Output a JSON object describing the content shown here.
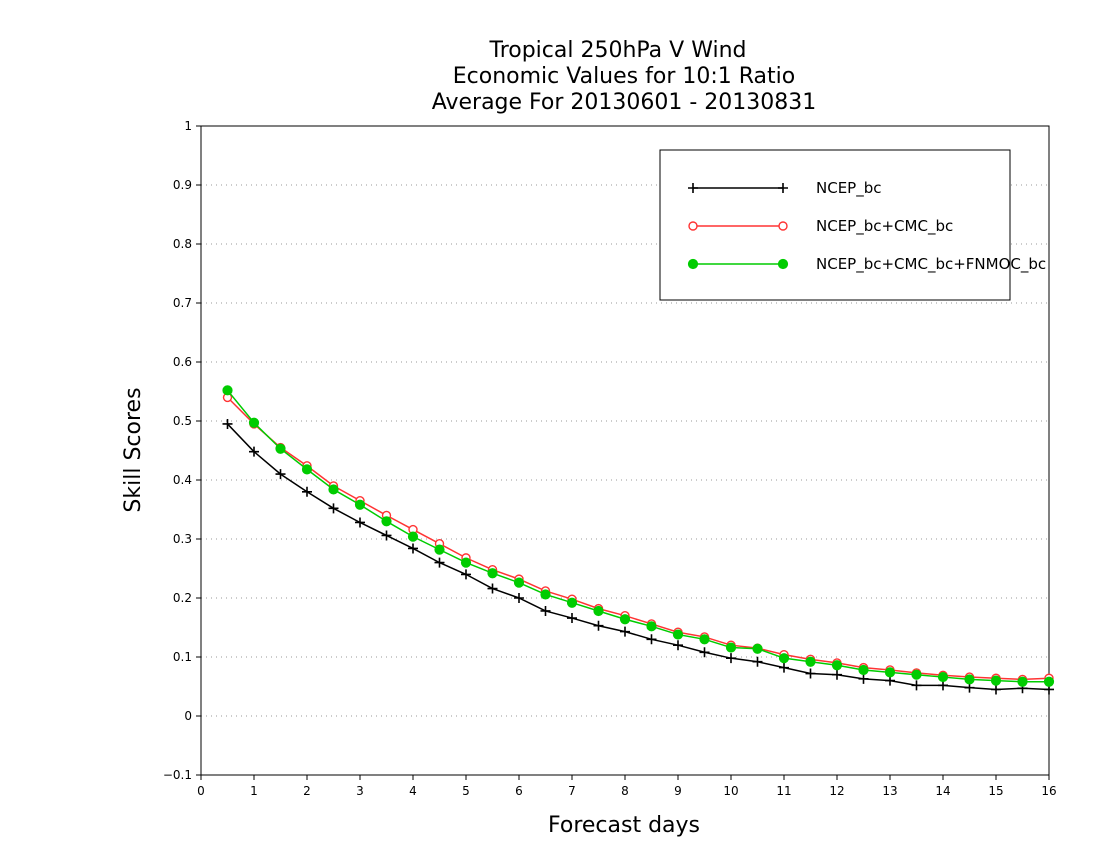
{
  "chart_data": {
    "type": "line",
    "title_lines": [
      "Tropical 250hPa V Wind",
      "Economic Values for 10:1 Ratio",
      "Average For 20130601 - 20130831"
    ],
    "xlabel": "Forecast days",
    "ylabel": "Skill Scores",
    "xlim": [
      0,
      16
    ],
    "ylim": [
      -0.1,
      1
    ],
    "xticks": [
      "0",
      "1",
      "2",
      "3",
      "4",
      "5",
      "6",
      "7",
      "8",
      "9",
      "10",
      "11",
      "12",
      "13",
      "14",
      "15",
      "16"
    ],
    "yticks": [
      "−0.1",
      "0",
      "0.1",
      "0.2",
      "0.3",
      "0.4",
      "0.5",
      "0.6",
      "0.7",
      "0.8",
      "0.9",
      "1"
    ],
    "grid": "dotted-horizontal",
    "legend_position": "top-right",
    "x": [
      0.5,
      1,
      1.5,
      2,
      2.5,
      3,
      3.5,
      4,
      4.5,
      5,
      5.5,
      6,
      6.5,
      7,
      7.5,
      8,
      8.5,
      9,
      9.5,
      10,
      10.5,
      11,
      11.5,
      12,
      12.5,
      13,
      13.5,
      14,
      14.5,
      15,
      15.5,
      16
    ],
    "series": [
      {
        "name": "NCEP_bc",
        "color": "#000000",
        "marker": "plus",
        "values": [
          0.495,
          0.448,
          0.41,
          0.38,
          0.352,
          0.328,
          0.306,
          0.284,
          0.26,
          0.24,
          0.216,
          0.2,
          0.178,
          0.166,
          0.153,
          0.143,
          0.13,
          0.12,
          0.108,
          0.098,
          0.092,
          0.082,
          0.072,
          0.07,
          0.063,
          0.06,
          0.052,
          0.052,
          0.048,
          0.045,
          0.047,
          0.045
        ]
      },
      {
        "name": "NCEP_bc+CMC_bc",
        "color": "#ff3333",
        "marker": "open-circle",
        "values": [
          0.54,
          0.495,
          0.455,
          0.424,
          0.39,
          0.365,
          0.34,
          0.316,
          0.292,
          0.268,
          0.248,
          0.232,
          0.212,
          0.198,
          0.182,
          0.17,
          0.156,
          0.142,
          0.134,
          0.12,
          0.115,
          0.104,
          0.096,
          0.09,
          0.082,
          0.078,
          0.073,
          0.069,
          0.066,
          0.064,
          0.062,
          0.064
        ]
      },
      {
        "name": "NCEP_bc+CMC_bc+FNMOC_bc",
        "color": "#00cc00",
        "marker": "filled-circle",
        "values": [
          0.552,
          0.497,
          0.453,
          0.418,
          0.384,
          0.358,
          0.33,
          0.304,
          0.282,
          0.26,
          0.242,
          0.226,
          0.206,
          0.192,
          0.178,
          0.164,
          0.152,
          0.138,
          0.13,
          0.116,
          0.114,
          0.098,
          0.092,
          0.086,
          0.078,
          0.074,
          0.07,
          0.066,
          0.062,
          0.06,
          0.058,
          0.058
        ]
      }
    ]
  }
}
